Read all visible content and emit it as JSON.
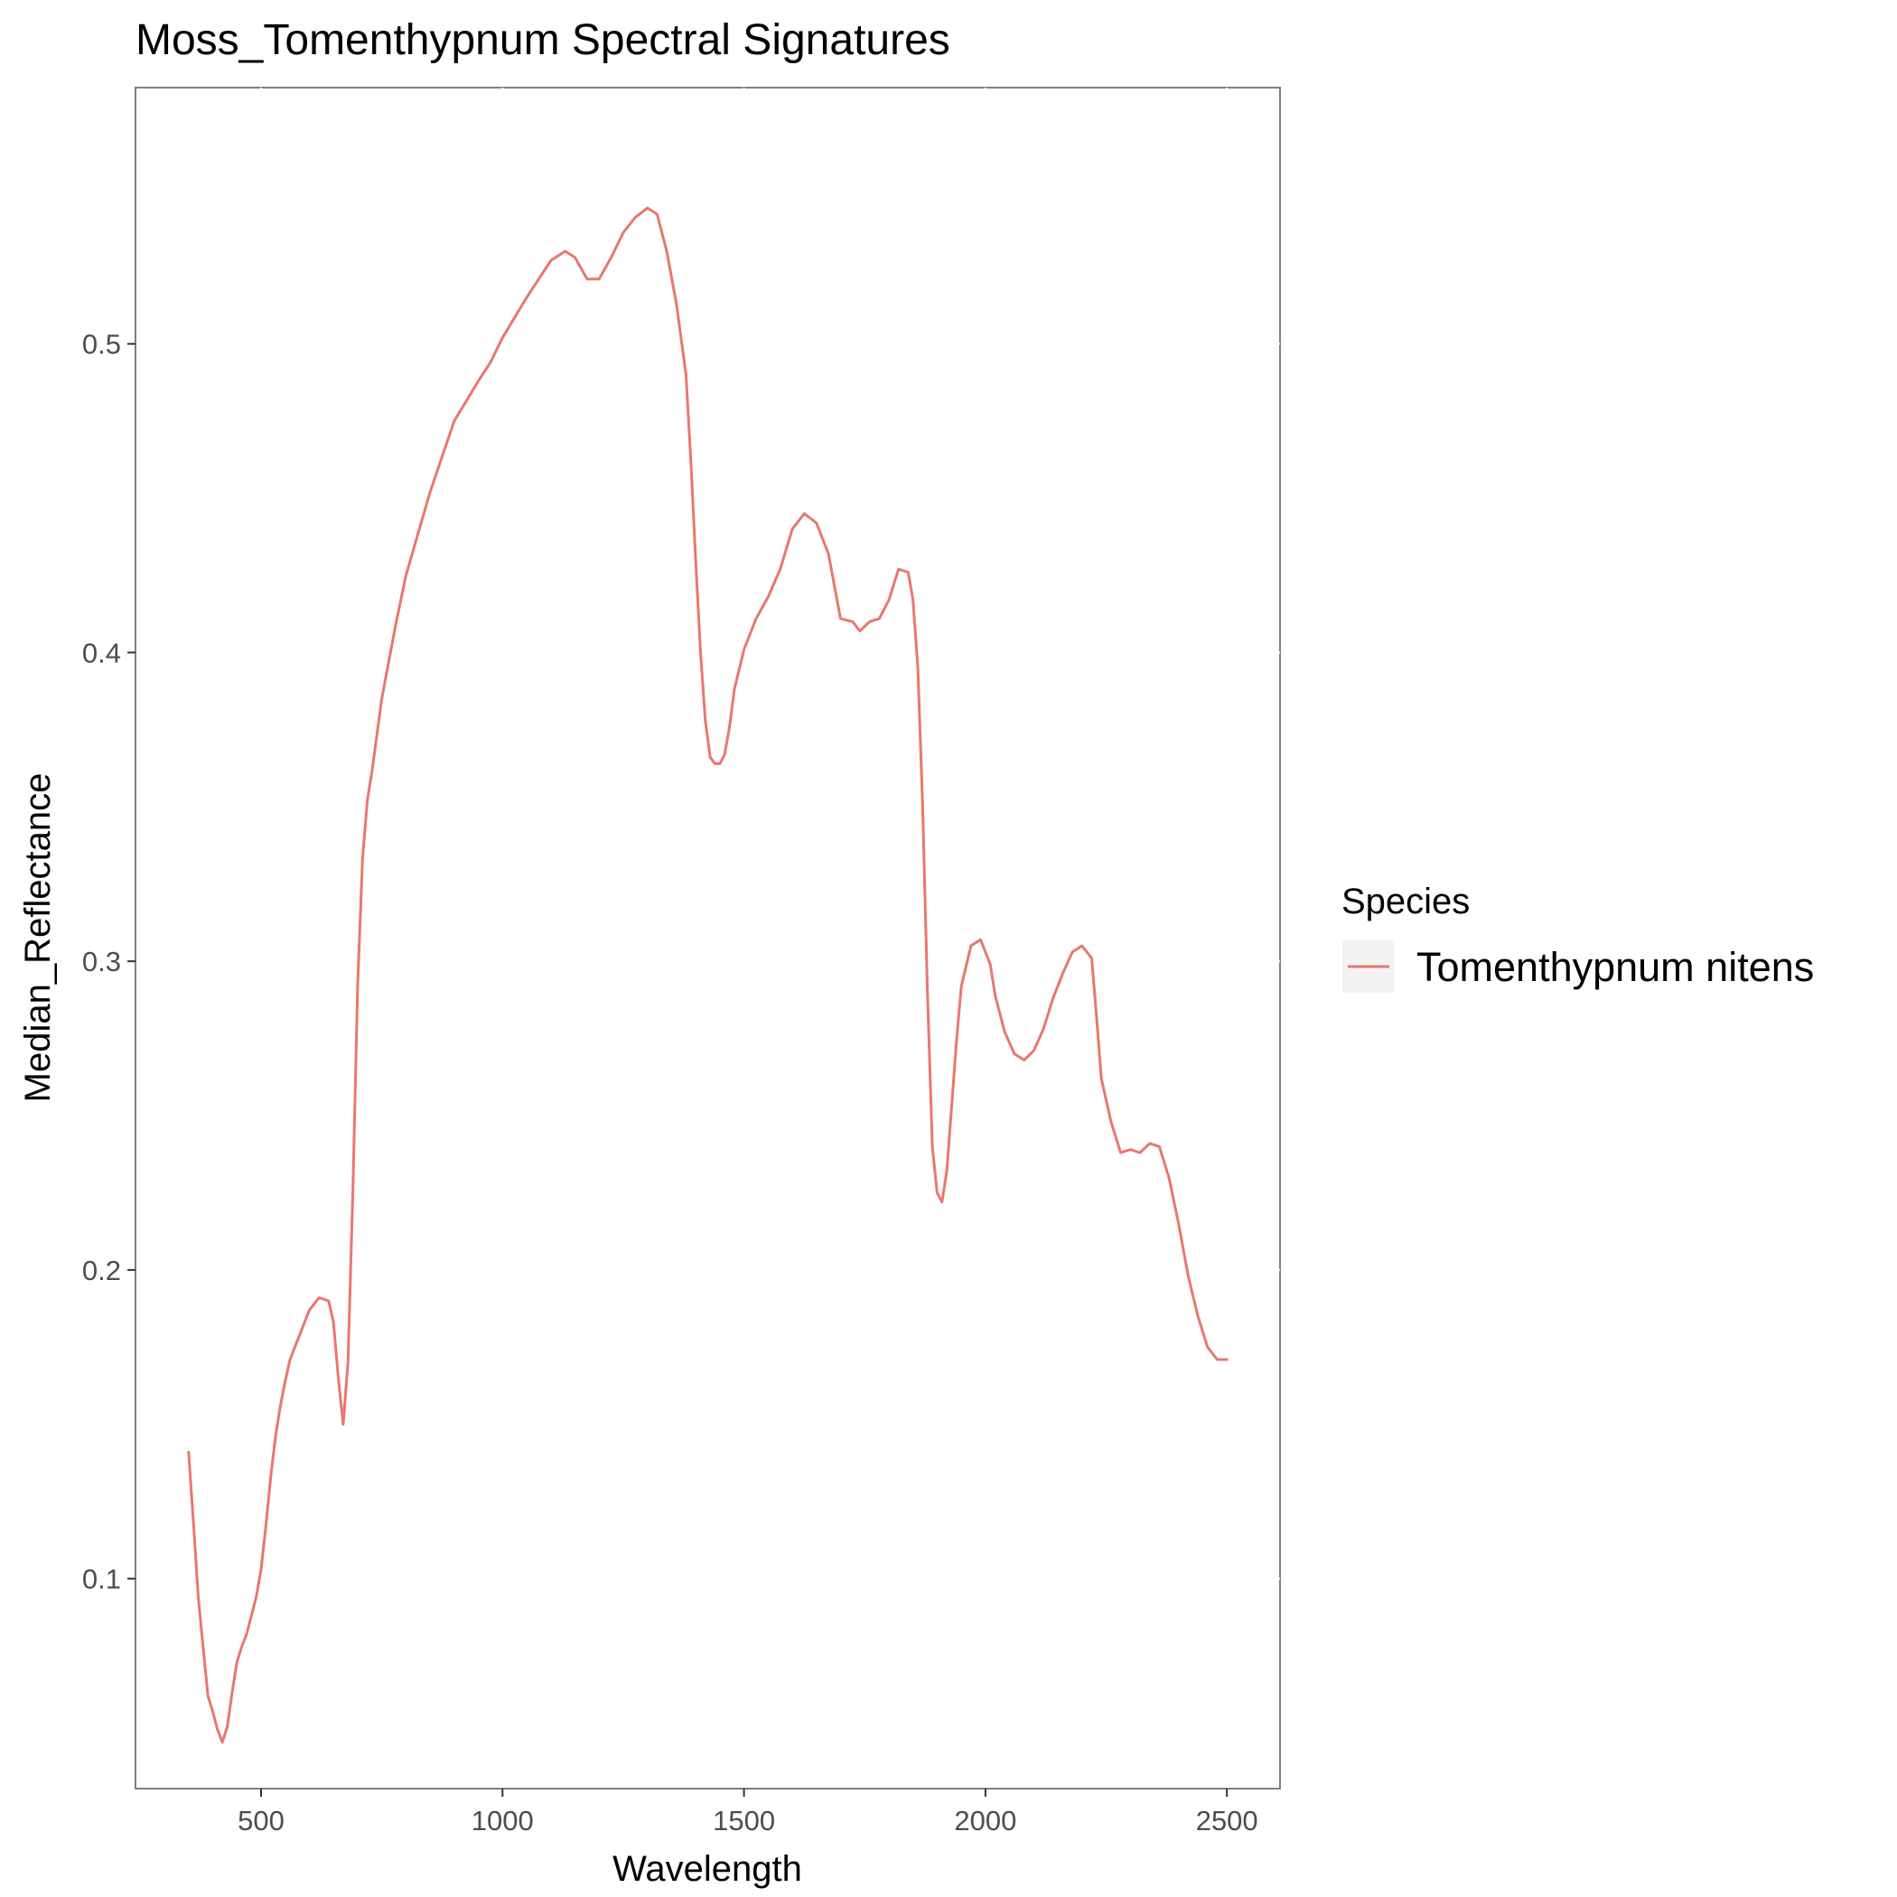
{
  "chart_data": {
    "type": "line",
    "title": "Moss_Tomenthypnum Spectral Signatures",
    "xlabel": "Wavelength",
    "ylabel": "Median_Reflectance",
    "xlim": [
      240,
      2610
    ],
    "ylim": [
      0.032,
      0.583
    ],
    "x_ticks": [
      500,
      1000,
      1500,
      2000,
      2500
    ],
    "x_tick_labels": [
      "500",
      "1000",
      "1500",
      "2000",
      "2500"
    ],
    "y_ticks": [
      0.1,
      0.2,
      0.3,
      0.4,
      0.5
    ],
    "y_tick_labels": [
      "0.1",
      "0.2",
      "0.3",
      "0.4",
      "0.5"
    ],
    "grid": false,
    "legend": {
      "title": "Species",
      "position": "right"
    },
    "series": [
      {
        "name": "Tomenthypnum nitens",
        "color": "#e8776f",
        "x": [
          350,
          360,
          370,
          380,
          390,
          400,
          410,
          420,
          430,
          440,
          450,
          460,
          470,
          480,
          490,
          500,
          510,
          520,
          530,
          540,
          550,
          560,
          570,
          580,
          600,
          620,
          640,
          650,
          660,
          670,
          680,
          690,
          700,
          710,
          720,
          730,
          750,
          780,
          800,
          850,
          900,
          950,
          975,
          1000,
          1050,
          1100,
          1130,
          1150,
          1175,
          1200,
          1225,
          1250,
          1275,
          1300,
          1320,
          1340,
          1360,
          1380,
          1390,
          1400,
          1410,
          1420,
          1430,
          1440,
          1450,
          1460,
          1470,
          1480,
          1500,
          1525,
          1550,
          1575,
          1600,
          1625,
          1650,
          1675,
          1700,
          1725,
          1740,
          1760,
          1780,
          1800,
          1820,
          1840,
          1850,
          1860,
          1870,
          1880,
          1890,
          1900,
          1910,
          1920,
          1930,
          1940,
          1950,
          1970,
          1990,
          2010,
          2020,
          2040,
          2060,
          2080,
          2100,
          2120,
          2140,
          2160,
          2180,
          2200,
          2220,
          2230,
          2240,
          2260,
          2280,
          2300,
          2320,
          2340,
          2360,
          2380,
          2400,
          2420,
          2440,
          2460,
          2480,
          2500
        ],
        "y": [
          0.141,
          0.118,
          0.094,
          0.078,
          0.062,
          0.057,
          0.051,
          0.047,
          0.052,
          0.063,
          0.073,
          0.078,
          0.082,
          0.088,
          0.094,
          0.103,
          0.117,
          0.133,
          0.146,
          0.156,
          0.164,
          0.171,
          0.175,
          0.179,
          0.187,
          0.191,
          0.19,
          0.183,
          0.165,
          0.15,
          0.17,
          0.225,
          0.292,
          0.333,
          0.352,
          0.362,
          0.385,
          0.41,
          0.425,
          0.452,
          0.475,
          0.488,
          0.494,
          0.502,
          0.515,
          0.527,
          0.53,
          0.528,
          0.521,
          0.521,
          0.528,
          0.536,
          0.541,
          0.544,
          0.542,
          0.53,
          0.513,
          0.49,
          0.462,
          0.43,
          0.4,
          0.378,
          0.366,
          0.364,
          0.364,
          0.367,
          0.376,
          0.388,
          0.401,
          0.411,
          0.418,
          0.427,
          0.44,
          0.445,
          0.442,
          0.432,
          0.411,
          0.41,
          0.407,
          0.41,
          0.411,
          0.417,
          0.427,
          0.426,
          0.417,
          0.395,
          0.35,
          0.29,
          0.24,
          0.225,
          0.222,
          0.232,
          0.253,
          0.274,
          0.292,
          0.305,
          0.307,
          0.299,
          0.289,
          0.277,
          0.27,
          0.268,
          0.271,
          0.278,
          0.288,
          0.296,
          0.303,
          0.305,
          0.301,
          0.282,
          0.262,
          0.248,
          0.238,
          0.239,
          0.238,
          0.241,
          0.24,
          0.23,
          0.215,
          0.198,
          0.185,
          0.175,
          0.171,
          0.171
        ]
      }
    ]
  }
}
